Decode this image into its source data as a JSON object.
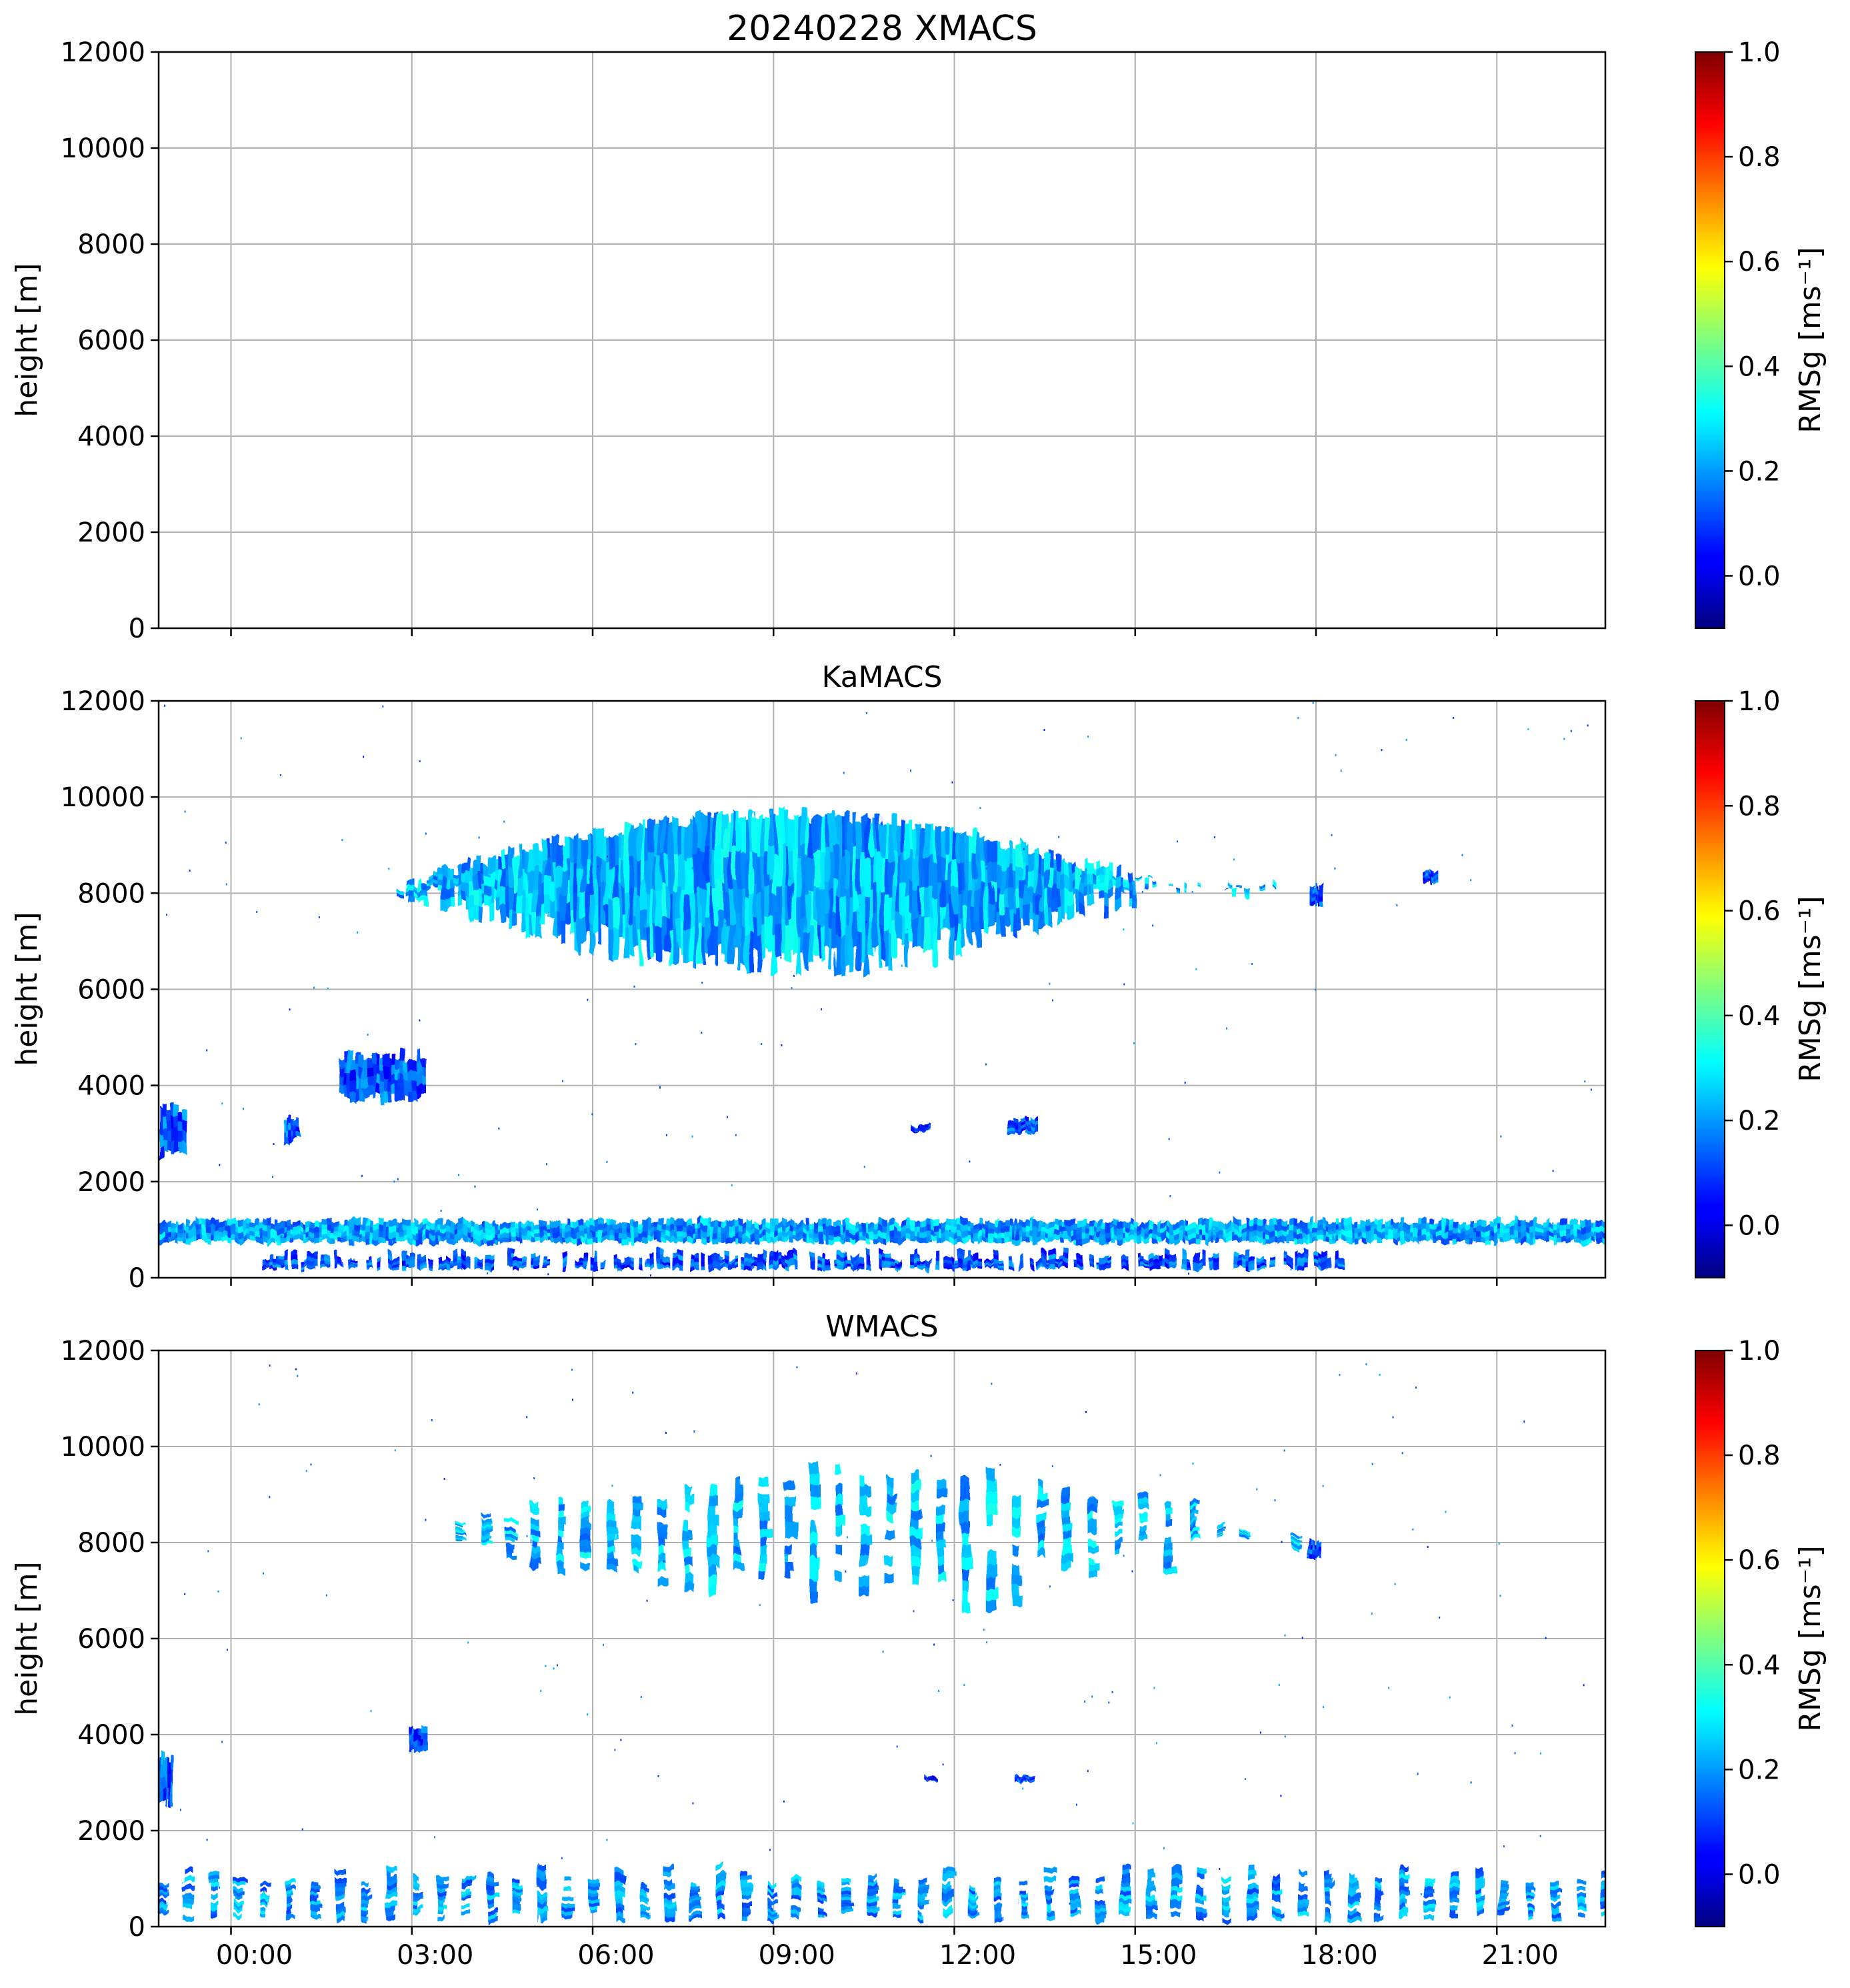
{
  "chart_data": [
    {
      "type": "heatmap",
      "title": "20240228 XMACS",
      "ylabel": "height [m]",
      "ylim": [
        0,
        12000
      ],
      "yticks": [
        "0",
        "2000",
        "4000",
        "6000",
        "8000",
        "10000",
        "12000"
      ],
      "xlim_hours": [
        -1.2,
        22.8
      ],
      "xticks": [
        "00:00",
        "03:00",
        "06:00",
        "09:00",
        "12:00",
        "15:00",
        "18:00",
        "21:00"
      ],
      "show_xtick_labels": false,
      "grid": true,
      "colorbar": {
        "label": "RMSg [ms⁻¹]",
        "range": [
          -0.1,
          1.0
        ],
        "ticks": [
          "0.0",
          "0.2",
          "0.4",
          "0.6",
          "0.8",
          "1.0"
        ],
        "colormap": "jet"
      },
      "features": []
    },
    {
      "type": "heatmap",
      "title": "KaMACS",
      "ylabel": "height [m]",
      "ylim": [
        0,
        12000
      ],
      "yticks": [
        "0",
        "2000",
        "4000",
        "6000",
        "8000",
        "10000",
        "12000"
      ],
      "xlim_hours": [
        -1.2,
        22.8
      ],
      "xticks": [
        "00:00",
        "03:00",
        "06:00",
        "09:00",
        "12:00",
        "15:00",
        "18:00",
        "21:00"
      ],
      "show_xtick_labels": false,
      "grid": true,
      "colorbar": {
        "label": "RMSg [ms⁻¹]",
        "range": [
          -0.1,
          1.0
        ],
        "ticks": [
          "0.0",
          "0.2",
          "0.4",
          "0.6",
          "0.8",
          "1.0"
        ],
        "colormap": "jet"
      },
      "features": [
        {
          "kind": "upper-cloud",
          "t_start": 2.7,
          "t_end": 17.4,
          "base": 6200,
          "top": 9800,
          "rms": 0.22
        },
        {
          "kind": "boundary-layer",
          "t_start": -1.2,
          "t_end": 22.8,
          "base": 700,
          "top": 1250,
          "rms": 0.2
        },
        {
          "kind": "lower-layer",
          "t_start": 0.5,
          "t_end": 18.5,
          "base": 150,
          "top": 600,
          "rms": 0.12
        },
        {
          "kind": "mid-cloud",
          "t_start": 1.8,
          "t_end": 3.2,
          "base": 3600,
          "top": 4800,
          "rms": 0.12
        },
        {
          "kind": "mid-cloud",
          "t_start": -1.2,
          "t_end": -0.75,
          "base": 2400,
          "top": 3700,
          "rms": 0.12
        },
        {
          "kind": "mid-cloud",
          "t_start": 0.85,
          "t_end": 1.15,
          "base": 2800,
          "top": 3400,
          "rms": 0.12
        },
        {
          "kind": "patch",
          "t_start": 11.3,
          "t_end": 11.6,
          "base": 3050,
          "top": 3200,
          "rms": 0.08
        },
        {
          "kind": "patch",
          "t_start": 12.9,
          "t_end": 13.4,
          "base": 3000,
          "top": 3350,
          "rms": 0.1
        },
        {
          "kind": "patch",
          "t_start": 17.9,
          "t_end": 18.1,
          "base": 7700,
          "top": 8200,
          "rms": 0.1
        },
        {
          "kind": "patch",
          "t_start": 19.8,
          "t_end": 20.0,
          "base": 8200,
          "top": 8500,
          "rms": 0.1
        }
      ]
    },
    {
      "type": "heatmap",
      "title": "WMACS",
      "ylabel": "height [m]",
      "ylim": [
        0,
        12000
      ],
      "yticks": [
        "0",
        "2000",
        "4000",
        "6000",
        "8000",
        "10000",
        "12000"
      ],
      "xlim_hours": [
        -1.2,
        22.8
      ],
      "xticks": [
        "00:00",
        "03:00",
        "06:00",
        "09:00",
        "12:00",
        "15:00",
        "18:00",
        "21:00"
      ],
      "show_xtick_labels": true,
      "grid": true,
      "colorbar": {
        "label": "RMSg [ms⁻¹]",
        "range": [
          -0.1,
          1.0
        ],
        "ticks": [
          "0.0",
          "0.2",
          "0.4",
          "0.6",
          "0.8",
          "1.0"
        ],
        "colormap": "jet"
      },
      "features": [
        {
          "kind": "upper-stripes",
          "t_start": 3.3,
          "t_end": 17.6,
          "base": 6400,
          "top": 9800,
          "rms": 0.22
        },
        {
          "kind": "lower-stripes",
          "t_start": -1.2,
          "t_end": 22.8,
          "base": 100,
          "top": 1300,
          "rms": 0.18
        },
        {
          "kind": "mid-cloud",
          "t_start": 2.95,
          "t_end": 3.25,
          "base": 3600,
          "top": 4250,
          "rms": 0.1
        },
        {
          "kind": "mid-cloud",
          "t_start": -1.2,
          "t_end": -0.95,
          "base": 2400,
          "top": 3700,
          "rms": 0.12
        },
        {
          "kind": "patch",
          "t_start": 11.5,
          "t_end": 11.7,
          "base": 3050,
          "top": 3150,
          "rms": 0.08
        },
        {
          "kind": "patch",
          "t_start": 13.0,
          "t_end": 13.3,
          "base": 3000,
          "top": 3150,
          "rms": 0.1
        },
        {
          "kind": "patch",
          "t_start": 17.85,
          "t_end": 18.1,
          "base": 7650,
          "top": 8100,
          "rms": 0.1
        }
      ]
    }
  ]
}
